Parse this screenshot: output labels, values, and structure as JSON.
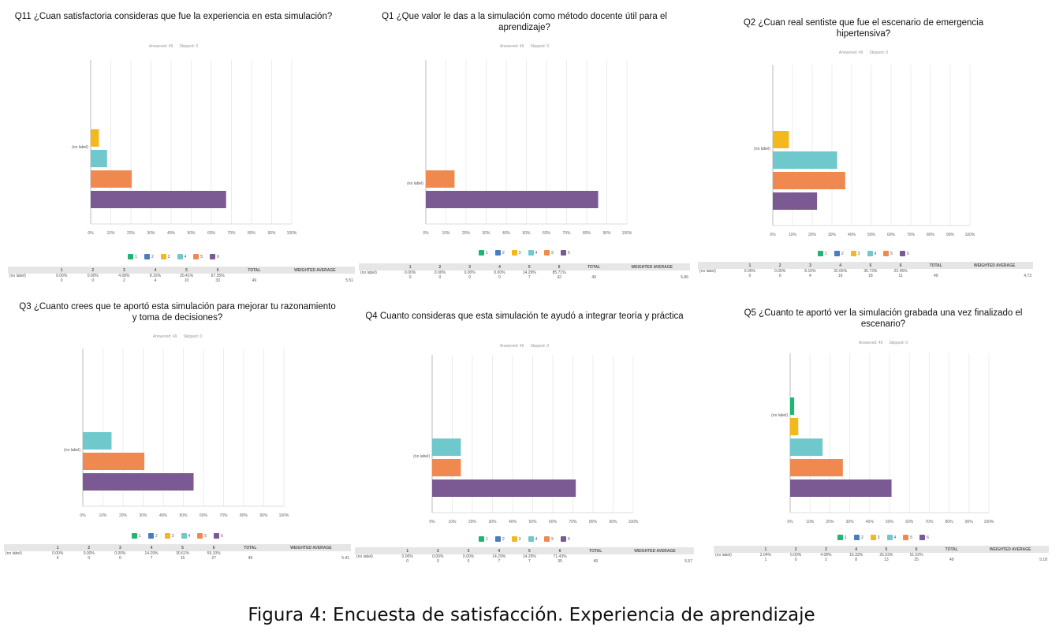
{
  "caption": "Figura 4: Encuesta de satisfacción. Experiencia de aprendizaje",
  "legend_colors": {
    "1": "#1fb574",
    "2": "#4a7cc0",
    "3": "#f2b81c",
    "4": "#6fc8cc",
    "5": "#f0894f",
    "6": "#7b5a94"
  },
  "x_ticks": [
    "0%",
    "10%",
    "20%",
    "30%",
    "40%",
    "50%",
    "60%",
    "70%",
    "80%",
    "90%",
    "100%"
  ],
  "table_headers": {
    "cols": [
      "1",
      "2",
      "3",
      "4",
      "5",
      "6"
    ],
    "total": "TOTAL",
    "wa": "WEIGHTED AVERAGE"
  },
  "chart_data": [
    {
      "id": "q11",
      "type": "bar",
      "orientation": "horizontal",
      "title": "Q11 ¿Cuan satisfactoria consideras que fue la experiencia en esta simulación?",
      "answered": "Answered: 49",
      "skipped": "Skipped: 0",
      "row_label": "(no label)",
      "xlim": [
        0,
        100
      ],
      "series": [
        {
          "name": "1",
          "value": 0
        },
        {
          "name": "2",
          "value": 0
        },
        {
          "name": "3",
          "value": 4.08
        },
        {
          "name": "4",
          "value": 8.16
        },
        {
          "name": "5",
          "value": 20.41
        },
        {
          "name": "6",
          "value": 67.35
        }
      ],
      "table": {
        "label": "(no label)",
        "pcts": [
          "0.00%",
          "0.00%",
          "4.08%",
          "8.16%",
          "20.41%",
          "67.35%"
        ],
        "counts": [
          "0",
          "0",
          "2",
          "4",
          "10",
          "33"
        ],
        "total": "49",
        "wa": "5.51"
      }
    },
    {
      "id": "q1",
      "type": "bar",
      "orientation": "horizontal",
      "title": "Q1 ¿Que valor le das a la  simulación como método docente útil para el aprendizaje?",
      "answered": "Answered: 49",
      "skipped": "Skipped: 0",
      "row_label": "(no label)",
      "xlim": [
        0,
        100
      ],
      "series": [
        {
          "name": "1",
          "value": 0
        },
        {
          "name": "2",
          "value": 0
        },
        {
          "name": "3",
          "value": 0
        },
        {
          "name": "4",
          "value": 0
        },
        {
          "name": "5",
          "value": 14.29
        },
        {
          "name": "6",
          "value": 85.71
        }
      ],
      "table": {
        "label": "(no label)",
        "pcts": [
          "0.00%",
          "0.00%",
          "0.00%",
          "0.00%",
          "14.29%",
          "85.71%"
        ],
        "counts": [
          "0",
          "0",
          "0",
          "0",
          "7",
          "42"
        ],
        "total": "49",
        "wa": "5.86"
      }
    },
    {
      "id": "q2",
      "type": "bar",
      "orientation": "horizontal",
      "title": "Q2 ¿Cuan real sentiste que fue el escenario de emergencia hipertensiva?",
      "answered": "Answered: 49",
      "skipped": "Skipped: 0",
      "row_label": "(no label)",
      "xlim": [
        0,
        100
      ],
      "series": [
        {
          "name": "1",
          "value": 0
        },
        {
          "name": "2",
          "value": 0
        },
        {
          "name": "3",
          "value": 8.16
        },
        {
          "name": "4",
          "value": 32.65
        },
        {
          "name": "5",
          "value": 36.73
        },
        {
          "name": "6",
          "value": 22.45
        }
      ],
      "table": {
        "label": "(no label)",
        "pcts": [
          "0.00%",
          "0.00%",
          "8.16%",
          "32.65%",
          "36.73%",
          "22.45%"
        ],
        "counts": [
          "0",
          "0",
          "4",
          "16",
          "18",
          "11"
        ],
        "total": "49",
        "wa": "4.73"
      }
    },
    {
      "id": "q3",
      "type": "bar",
      "orientation": "horizontal",
      "title": "Q3 ¿Cuanto crees que te aportó esta simulación para mejorar tu razonamiento y toma de decisiones?",
      "answered": "Answered: 49",
      "skipped": "Skipped: 0",
      "row_label": "(no label)",
      "xlim": [
        0,
        100
      ],
      "series": [
        {
          "name": "1",
          "value": 0
        },
        {
          "name": "2",
          "value": 0
        },
        {
          "name": "3",
          "value": 0
        },
        {
          "name": "4",
          "value": 14.29
        },
        {
          "name": "5",
          "value": 30.61
        },
        {
          "name": "6",
          "value": 55.1
        }
      ],
      "table": {
        "label": "(no label)",
        "pcts": [
          "0.00%",
          "0.00%",
          "0.00%",
          "14.29%",
          "30.61%",
          "55.10%"
        ],
        "counts": [
          "0",
          "0",
          "0",
          "7",
          "15",
          "27"
        ],
        "total": "49",
        "wa": "5.41"
      }
    },
    {
      "id": "q4",
      "type": "bar",
      "orientation": "horizontal",
      "title": "Q4 Cuanto consideras que esta simulación te ayudó a integrar teoría y práctica",
      "answered": "Answered: 49",
      "skipped": "Skipped: 0",
      "row_label": "(no label)",
      "xlim": [
        0,
        100
      ],
      "series": [
        {
          "name": "1",
          "value": 0
        },
        {
          "name": "2",
          "value": 0
        },
        {
          "name": "3",
          "value": 0
        },
        {
          "name": "4",
          "value": 14.29
        },
        {
          "name": "5",
          "value": 14.29
        },
        {
          "name": "6",
          "value": 71.43
        }
      ],
      "table": {
        "label": "(no label)",
        "pcts": [
          "0.00%",
          "0.00%",
          "0.00%",
          "14.29%",
          "14.29%",
          "71.43%"
        ],
        "counts": [
          "0",
          "0",
          "0",
          "7",
          "7",
          "35"
        ],
        "total": "49",
        "wa": "5.57"
      }
    },
    {
      "id": "q5",
      "type": "bar",
      "orientation": "horizontal",
      "title": "Q5 ¿Cuanto te aportó ver la simulación grabada una vez finalizado el escenario?",
      "answered": "Answered: 49",
      "skipped": "Skipped: 0",
      "row_label": "(no label)",
      "xlim": [
        0,
        100
      ],
      "series": [
        {
          "name": "1",
          "value": 2.04
        },
        {
          "name": "2",
          "value": 0
        },
        {
          "name": "3",
          "value": 4.08
        },
        {
          "name": "4",
          "value": 16.33
        },
        {
          "name": "5",
          "value": 26.53
        },
        {
          "name": "6",
          "value": 51.02
        }
      ],
      "table": {
        "label": "(no label)",
        "pcts": [
          "2.04%",
          "0.00%",
          "4.08%",
          "16.33%",
          "26.53%",
          "51.02%"
        ],
        "counts": [
          "1",
          "0",
          "2",
          "8",
          "13",
          "25"
        ],
        "total": "49",
        "wa": "5.18"
      }
    }
  ]
}
